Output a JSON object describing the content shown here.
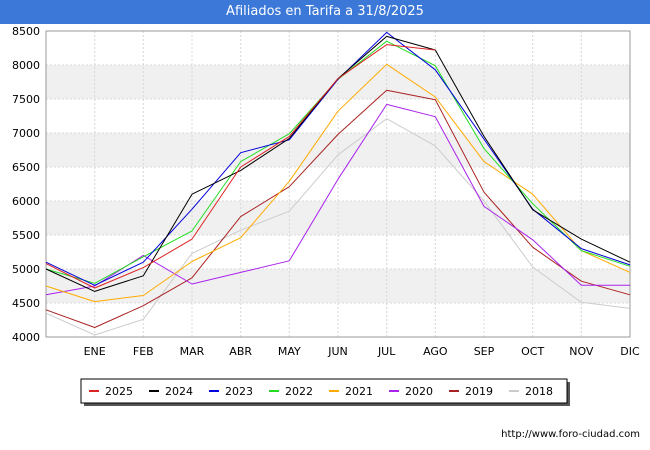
{
  "chart_data": {
    "type": "line",
    "title": "Afiliados en Tarifa a 31/8/2025",
    "xlabel": "",
    "ylabel": "",
    "ylim": [
      4000,
      8500
    ],
    "yticks": [
      4000,
      4500,
      5000,
      5500,
      6000,
      6500,
      7000,
      7500,
      8000,
      8500
    ],
    "categories": [
      "",
      "ENE",
      "FEB",
      "MAR",
      "ABR",
      "MAY",
      "JUN",
      "JUL",
      "AGO",
      "SEP",
      "OCT",
      "NOV",
      "DIC"
    ],
    "grid": true,
    "legend_position": "bottom",
    "series": [
      {
        "name": "2025",
        "color": "#dd2222",
        "values": [
          5080,
          4720,
          5020,
          5440,
          6500,
          6950,
          7800,
          8300,
          8220,
          null,
          null,
          null,
          null
        ]
      },
      {
        "name": "2024",
        "color": "#000000",
        "values": [
          5000,
          4670,
          4900,
          6100,
          6450,
          6920,
          7800,
          8420,
          8220,
          6950,
          5870,
          5440,
          5100
        ]
      },
      {
        "name": "2023",
        "color": "#0000dd",
        "values": [
          5100,
          4760,
          5100,
          5880,
          6710,
          6900,
          7790,
          8480,
          7930,
          6910,
          5880,
          5300,
          5060
        ]
      },
      {
        "name": "2022",
        "color": "#22dd22",
        "values": [
          5000,
          4790,
          5180,
          5560,
          6580,
          6990,
          7790,
          8350,
          7990,
          6770,
          5960,
          5270,
          5040
        ]
      },
      {
        "name": "2021",
        "color": "#ffaa00",
        "values": [
          4750,
          4520,
          4610,
          5110,
          5460,
          6290,
          7320,
          8010,
          7530,
          6580,
          6100,
          5270,
          4950
        ]
      },
      {
        "name": "2020",
        "color": "#aa22ee",
        "values": [
          4620,
          4750,
          5200,
          4780,
          4950,
          5120,
          6320,
          7420,
          7240,
          5920,
          5430,
          4760,
          4760
        ]
      },
      {
        "name": "2019",
        "color": "#aa2222",
        "values": [
          4400,
          4140,
          4460,
          4870,
          5770,
          6210,
          6980,
          7630,
          7490,
          6130,
          5320,
          4820,
          4620
        ]
      },
      {
        "name": "2018",
        "color": "#cccccc",
        "values": [
          4350,
          4030,
          4260,
          5230,
          5570,
          5850,
          6680,
          7210,
          6810,
          6000,
          5030,
          4510,
          4420
        ]
      }
    ]
  },
  "footer": {
    "url": "http://www.foro-ciudad.com"
  }
}
